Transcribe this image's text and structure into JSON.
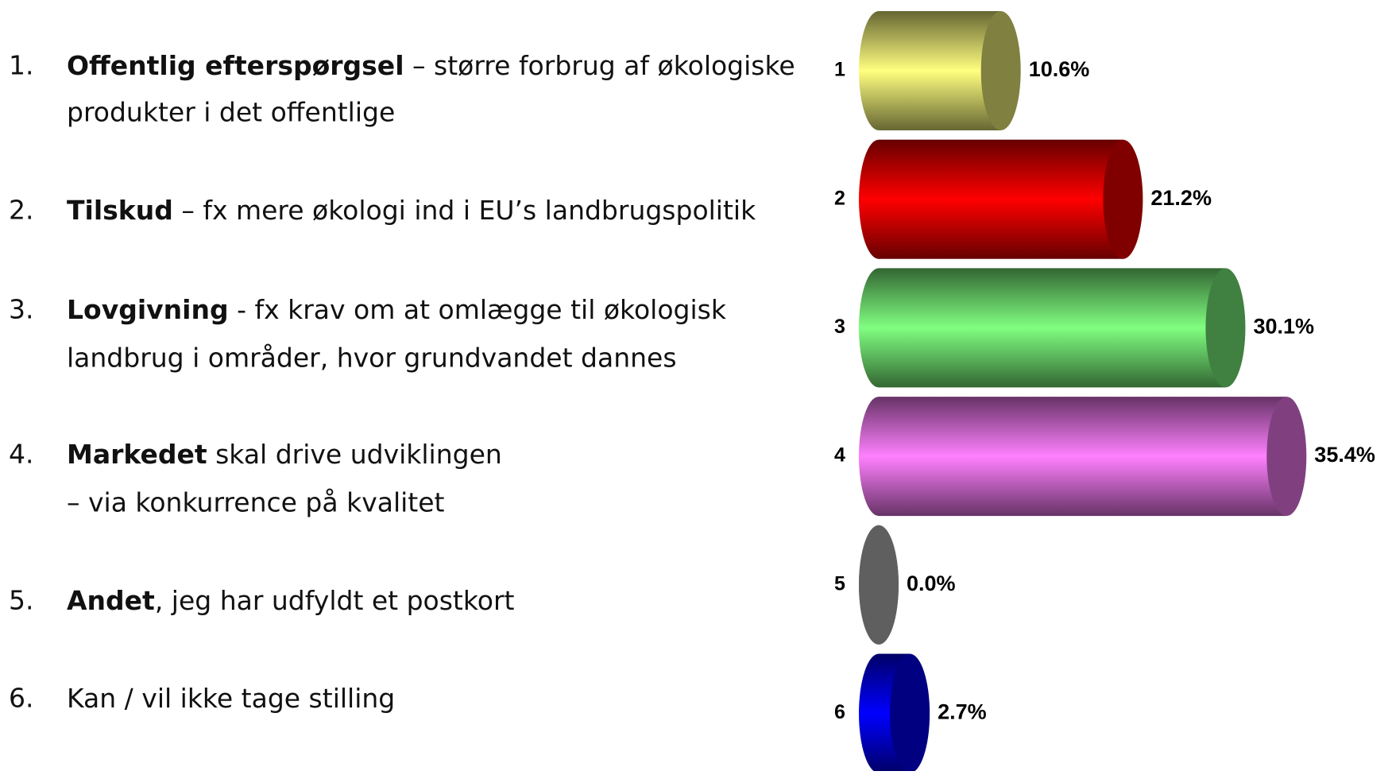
{
  "list": [
    {
      "number": "1.",
      "bold": "Offentlig efterspørgsel",
      "rest": " – større forbrug af økologiske",
      "cont": "produkter i det offentlige"
    },
    {
      "number": "2.",
      "bold": "Tilskud",
      "rest": " – fx mere økologi ind i EU’s landbrugspolitik"
    },
    {
      "number": "3.",
      "bold": "Lovgivning",
      "rest": " - fx krav om at omlægge til økologisk",
      "cont": "landbrug i områder, hvor grundvandet dannes"
    },
    {
      "number": "4.",
      "bold": "Markedet",
      "rest": " skal drive udviklingen",
      "cont": "– via konkurrence på kvalitet"
    },
    {
      "number": "5.",
      "bold": "Andet",
      "rest": ", jeg har udfyldt et postkort"
    },
    {
      "number": "6.",
      "rest": "Kan / vil ikke tage stilling"
    }
  ],
  "chart_data": {
    "type": "bar",
    "orientation": "horizontal",
    "categories": [
      "1",
      "2",
      "3",
      "4",
      "5",
      "6"
    ],
    "values": [
      10.6,
      21.2,
      30.1,
      35.4,
      0.0,
      2.7
    ],
    "value_labels": [
      "10.6%",
      "21.2%",
      "30.1%",
      "35.4%",
      "0.0%",
      "2.7%"
    ],
    "colors": [
      "#ffff80",
      "#ff0000",
      "#80ff80",
      "#ff80ff",
      "#707070",
      "#0000ff"
    ],
    "xlim": [
      0,
      40
    ]
  }
}
